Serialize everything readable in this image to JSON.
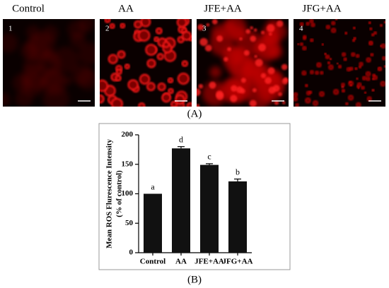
{
  "panel_a": {
    "labels": [
      "Control",
      "AA",
      "JFE+AA",
      "JFG+AA"
    ],
    "numbers": [
      "1",
      "2",
      "3",
      "4"
    ],
    "caption": "(A)"
  },
  "chart_data": {
    "type": "bar",
    "ylabel": [
      "Mean ROS Flurescence Intensity",
      "(% of control)"
    ],
    "categories": [
      "Control",
      "AA",
      "JFE+AA",
      "JFG+AA"
    ],
    "values": [
      100,
      177,
      149,
      121
    ],
    "errors": [
      0,
      3,
      2,
      4
    ],
    "annotations": [
      "a",
      "d",
      "c",
      "b"
    ],
    "color": "#111111",
    "ylim": [
      0,
      200
    ],
    "yticks": [
      0,
      50,
      100,
      150,
      200
    ],
    "grid": false
  },
  "caption_b": "(B)"
}
